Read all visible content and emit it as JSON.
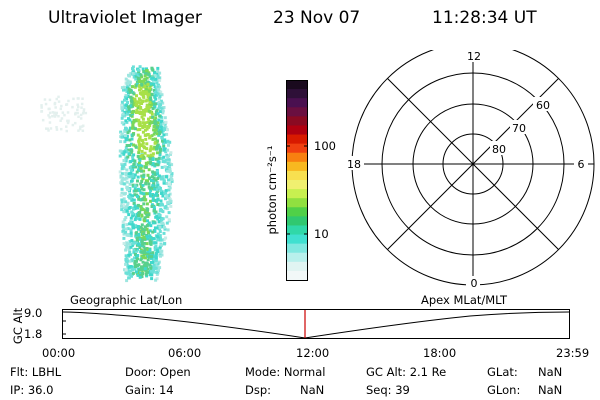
{
  "header": {
    "instrument": "Ultraviolet Imager",
    "date": "23 Nov 07",
    "time": "11:28:34 UT"
  },
  "colorbar": {
    "units_label": "photon cm⁻²s⁻¹",
    "tick_labels": [
      "100",
      "10"
    ],
    "colors": [
      "#1a0a1e",
      "#2e1038",
      "#4a1050",
      "#6a0f40",
      "#8a0a22",
      "#b00010",
      "#d81a00",
      "#f04010",
      "#f88010",
      "#f8b820",
      "#f8e050",
      "#f0f070",
      "#c8f050",
      "#90e040",
      "#50d048",
      "#30c870",
      "#30d8a8",
      "#40e0d0",
      "#80e8e0",
      "#b8f0ec",
      "#e0f4f2",
      "#f2f8f8"
    ]
  },
  "polar_plot": {
    "mlt_labels": {
      "top": "12",
      "bottom": "0",
      "left": "18",
      "right": "6"
    },
    "lat_labels": [
      "60",
      "70",
      "80"
    ]
  },
  "orbit_strip": {
    "ylabel": "GC Alt",
    "ytick_labels": [
      "9.0",
      "1.8"
    ],
    "left_label": "Geographic Lat/Lon",
    "right_label": "Apex  MLat/MLT",
    "time_labels": [
      "00:00",
      "06:00",
      "12:00",
      "18:00",
      "23:59"
    ],
    "marker_color": "#cc0000"
  },
  "status": {
    "row1": {
      "flt": "Flt: LBHL",
      "door": "Door: Open",
      "mode": "Mode: Normal",
      "gc_alt": "GC Alt: 2.1 Re",
      "glat_label": "GLat:",
      "glat_value": "NaN"
    },
    "row2": {
      "ip": "IP: 36.0",
      "gain": "Gain: 14",
      "dsp_label": "Dsp:",
      "dsp_value": "NaN",
      "seq": "Seq: 39",
      "glon_label": "GLon:",
      "glon_value": "NaN"
    }
  }
}
